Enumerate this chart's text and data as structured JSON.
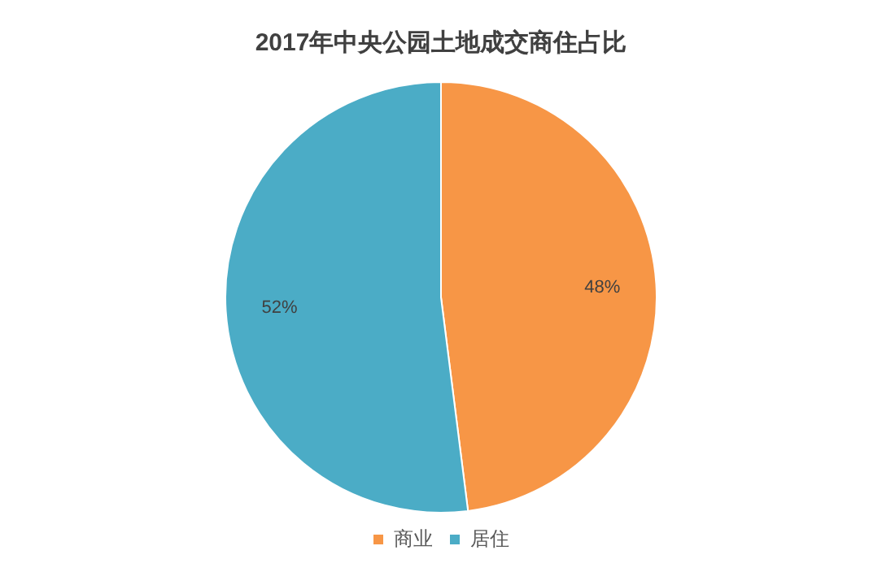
{
  "chart_data": {
    "type": "pie",
    "title": "2017年中央公园土地成交商住占比",
    "categories": [
      "商业",
      "居住"
    ],
    "values": [
      48,
      52
    ],
    "colors": [
      "#f79646",
      "#4bacc6"
    ],
    "value_labels": [
      "48%",
      "52%"
    ],
    "legend": "bottom"
  }
}
